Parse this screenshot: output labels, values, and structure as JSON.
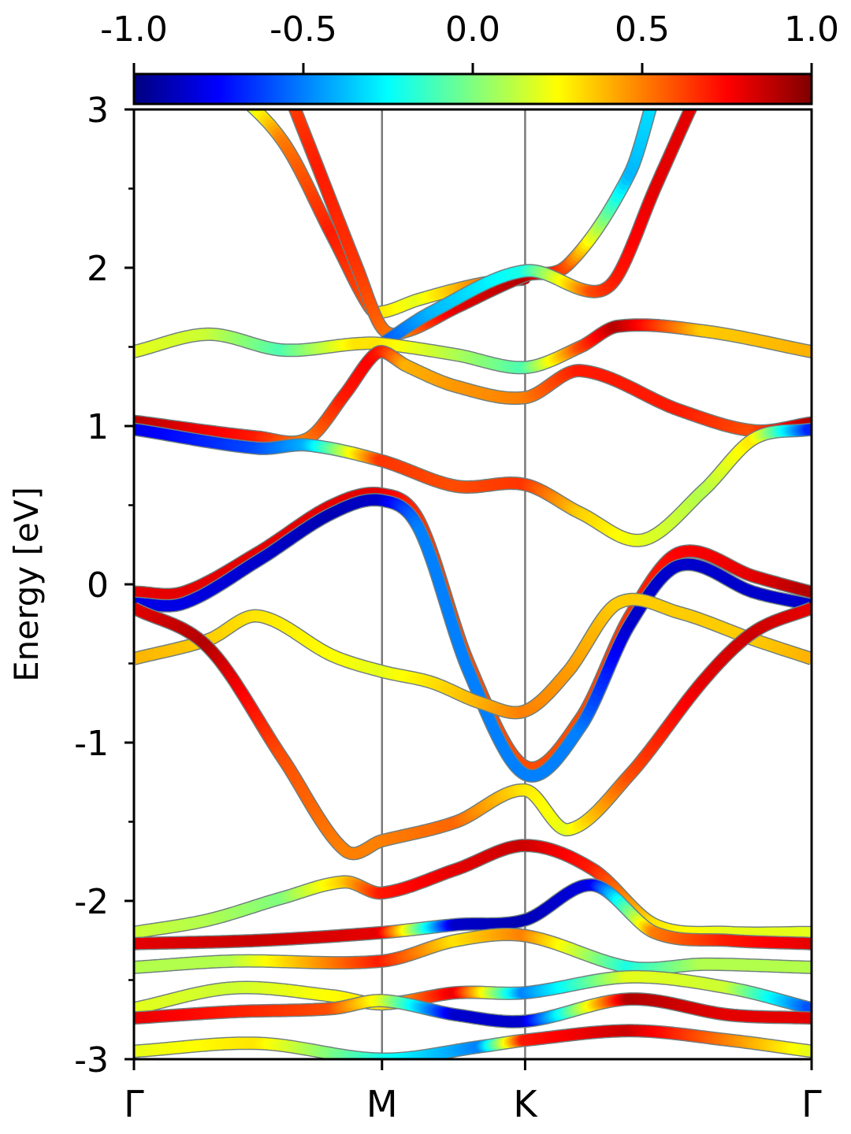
{
  "chart_data": {
    "type": "line",
    "ylabel": "Energy [eV]",
    "ylim": [
      -3,
      3
    ],
    "y_ticks": [
      "-3",
      "-2",
      "-1",
      "0",
      "1",
      "2",
      "3"
    ],
    "y_tick_values": [
      -3,
      -2,
      -1,
      0,
      1,
      2,
      3
    ],
    "x_ticks": [
      "Γ",
      "M",
      "K",
      "Γ"
    ],
    "x_tick_values": [
      0,
      1,
      1.577,
      2.732
    ],
    "xlim": [
      0,
      2.732
    ],
    "grid": "vertical lines at high-symmetry points",
    "colorbar": {
      "ticks": [
        "-1.0",
        "-0.5",
        "0.0",
        "0.5",
        "1.0"
      ],
      "tick_values": [
        -1.0,
        -0.5,
        0.0,
        0.5,
        1.0
      ],
      "range": [
        -1,
        1
      ],
      "colormap": "jet"
    },
    "colormap_stops": [
      "#00007f",
      "#0000ff",
      "#007fff",
      "#00ffff",
      "#7fff7f",
      "#ffff00",
      "#ff7f00",
      "#ff0000",
      "#7f0000"
    ],
    "series": [
      {
        "x": [
          0.35,
          0.6,
          0.8,
          0.95,
          1.0,
          1.15,
          1.4,
          1.577
        ],
        "y": [
          3.2,
          2.8,
          2.2,
          1.75,
          1.72,
          1.8,
          1.9,
          1.93
        ],
        "c": [
          -0.2,
          0.5,
          0.7,
          0.6,
          0.3,
          0.2,
          0.5,
          0.9
        ]
      },
      {
        "x": [
          0.6,
          0.75,
          0.9,
          1.0,
          1.1,
          1.3,
          1.577,
          1.75,
          2.0,
          2.1
        ],
        "y": [
          3.2,
          2.6,
          2.0,
          1.62,
          1.6,
          1.75,
          1.95,
          2.02,
          2.6,
          3.1
        ],
        "c": [
          0.6,
          0.7,
          0.65,
          0.55,
          0.5,
          0.8,
          0.9,
          0.6,
          -0.4,
          -0.3
        ]
      },
      {
        "x": [
          1.0,
          1.2,
          1.577,
          1.85,
          1.95,
          2.1,
          2.3
        ],
        "y": [
          1.52,
          1.72,
          1.98,
          1.85,
          1.95,
          2.5,
          3.2
        ],
        "c": [
          -0.6,
          -0.4,
          -0.2,
          0.6,
          0.7,
          0.8,
          0.8
        ]
      },
      {
        "x": [
          0,
          0.3,
          0.6,
          0.9,
          1.0,
          1.3,
          1.577,
          1.8,
          1.95,
          2.3,
          2.732
        ],
        "y": [
          1.47,
          1.58,
          1.48,
          1.52,
          1.52,
          1.45,
          1.37,
          1.5,
          1.63,
          1.6,
          1.47
        ],
        "c": [
          0.2,
          0.15,
          -0.1,
          0.3,
          0.3,
          0.1,
          -0.1,
          0.6,
          0.9,
          0.35,
          0.4
        ]
      },
      {
        "x": [
          0,
          0.5,
          0.7,
          0.85,
          0.95,
          1.0,
          1.1,
          1.3,
          1.577,
          1.8,
          2.2,
          2.5,
          2.732
        ],
        "y": [
          1.03,
          0.93,
          0.92,
          1.2,
          1.42,
          1.47,
          1.38,
          1.25,
          1.18,
          1.35,
          1.1,
          0.97,
          1.02
        ],
        "c": [
          0.9,
          0.7,
          0.5,
          0.7,
          0.75,
          0.7,
          0.4,
          0.45,
          0.5,
          0.7,
          0.7,
          0.6,
          0.9
        ]
      },
      {
        "x": [
          0,
          0.5,
          0.7,
          1.0,
          1.3,
          1.577,
          1.8,
          2.05,
          2.3,
          2.5,
          2.732
        ],
        "y": [
          0.98,
          0.86,
          0.88,
          0.78,
          0.62,
          0.63,
          0.45,
          0.28,
          0.6,
          0.92,
          0.98
        ],
        "c": [
          -0.8,
          -0.6,
          -0.4,
          0.65,
          0.6,
          0.65,
          0.35,
          0.2,
          0.1,
          0.3,
          -0.7
        ]
      },
      {
        "x": [
          0,
          0.2,
          0.5,
          0.8,
          1.0,
          1.15,
          1.35,
          1.577,
          1.8,
          2.0,
          2.2,
          2.5,
          2.732
        ],
        "y": [
          -0.05,
          -0.05,
          0.2,
          0.5,
          0.57,
          0.4,
          -0.5,
          -1.15,
          -0.85,
          -0.2,
          0.2,
          0.05,
          -0.05
        ],
        "c": [
          0.8,
          0.8,
          0.8,
          0.8,
          0.8,
          0.65,
          0.6,
          0.6,
          0.6,
          0.65,
          0.75,
          0.8,
          0.9
        ]
      },
      {
        "x": [
          0,
          0.2,
          0.5,
          0.8,
          1.0,
          1.15,
          1.35,
          1.577,
          1.8,
          2.0,
          2.2,
          2.5,
          2.732
        ],
        "y": [
          -0.12,
          -0.12,
          0.15,
          0.45,
          0.53,
          0.35,
          -0.55,
          -1.2,
          -0.9,
          -0.25,
          0.12,
          -0.05,
          -0.13
        ],
        "c": [
          -0.8,
          -0.8,
          -0.85,
          -0.9,
          -0.85,
          -0.5,
          -0.5,
          -0.5,
          -0.5,
          -0.85,
          -0.85,
          -0.85,
          -0.85
        ]
      },
      {
        "x": [
          0,
          0.3,
          0.5,
          0.8,
          1.0,
          1.2,
          1.4,
          1.577,
          1.75,
          1.95,
          2.2,
          2.5,
          2.732
        ],
        "y": [
          -0.47,
          -0.35,
          -0.2,
          -0.45,
          -0.55,
          -0.62,
          -0.75,
          -0.8,
          -0.55,
          -0.12,
          -0.18,
          -0.35,
          -0.47
        ],
        "c": [
          0.4,
          0.35,
          0.3,
          0.25,
          0.2,
          0.3,
          0.4,
          0.5,
          0.45,
          0.35,
          0.35,
          0.35,
          0.4
        ]
      },
      {
        "x": [
          0,
          0.3,
          0.6,
          0.85,
          1.0,
          1.3,
          1.577,
          1.75,
          2.0,
          2.3,
          2.5,
          2.732
        ],
        "y": [
          -0.15,
          -0.4,
          -1.1,
          -1.68,
          -1.62,
          -1.5,
          -1.3,
          -1.55,
          -1.2,
          -0.6,
          -0.3,
          -0.15
        ],
        "c": [
          0.8,
          0.9,
          0.6,
          0.5,
          0.5,
          0.55,
          0.3,
          0.2,
          0.6,
          0.8,
          0.85,
          0.8
        ]
      },
      {
        "x": [
          0,
          0.3,
          0.6,
          0.85,
          1.0,
          1.3,
          1.577,
          1.85,
          2.1,
          2.4,
          2.732
        ],
        "y": [
          -2.2,
          -2.12,
          -1.98,
          -1.88,
          -1.95,
          -1.8,
          -1.65,
          -1.8,
          -2.15,
          -2.2,
          -2.2
        ],
        "c": [
          0.15,
          0.1,
          0.0,
          0.35,
          0.7,
          0.8,
          0.85,
          0.7,
          0.3,
          0.2,
          0.2
        ]
      },
      {
        "x": [
          0,
          0.5,
          1.0,
          1.3,
          1.577,
          1.85,
          2.1,
          2.4,
          2.732
        ],
        "y": [
          -2.27,
          -2.25,
          -2.2,
          -2.15,
          -2.12,
          -1.9,
          -2.2,
          -2.25,
          -2.27
        ],
        "c": [
          0.8,
          0.85,
          0.8,
          -0.85,
          -0.9,
          -0.8,
          0.5,
          0.7,
          0.8
        ]
      },
      {
        "x": [
          0,
          0.4,
          1.0,
          1.3,
          1.577,
          2.0,
          2.3,
          2.732
        ],
        "y": [
          -2.42,
          -2.38,
          -2.38,
          -2.25,
          -2.22,
          -2.42,
          -2.4,
          -2.42
        ],
        "c": [
          0.1,
          0.1,
          0.7,
          0.3,
          0.5,
          -0.2,
          0.1,
          0.1
        ]
      },
      {
        "x": [
          0,
          0.4,
          0.8,
          1.0,
          1.3,
          1.577,
          2.0,
          2.4,
          2.732
        ],
        "y": [
          -2.68,
          -2.55,
          -2.6,
          -2.65,
          -2.58,
          -2.58,
          -2.48,
          -2.55,
          -2.68
        ],
        "c": [
          0.2,
          0.15,
          0.25,
          0.3,
          0.8,
          -0.5,
          0.2,
          0.15,
          -0.6
        ]
      },
      {
        "x": [
          0,
          0.4,
          0.8,
          1.0,
          1.3,
          1.577,
          2.0,
          2.4,
          2.732
        ],
        "y": [
          -2.74,
          -2.7,
          -2.68,
          -2.63,
          -2.72,
          -2.76,
          -2.62,
          -2.72,
          -2.74
        ],
        "c": [
          0.8,
          0.7,
          0.6,
          0.2,
          -0.85,
          -0.85,
          0.9,
          0.8,
          0.8
        ]
      },
      {
        "x": [
          0,
          0.5,
          1.0,
          1.4,
          1.577,
          2.0,
          2.4,
          2.732
        ],
        "y": [
          -2.95,
          -2.9,
          -3.0,
          -2.92,
          -2.88,
          -2.82,
          -2.88,
          -2.95
        ],
        "c": [
          0.2,
          0.3,
          -0.2,
          -0.5,
          0.7,
          0.85,
          0.5,
          0.2
        ]
      }
    ]
  }
}
